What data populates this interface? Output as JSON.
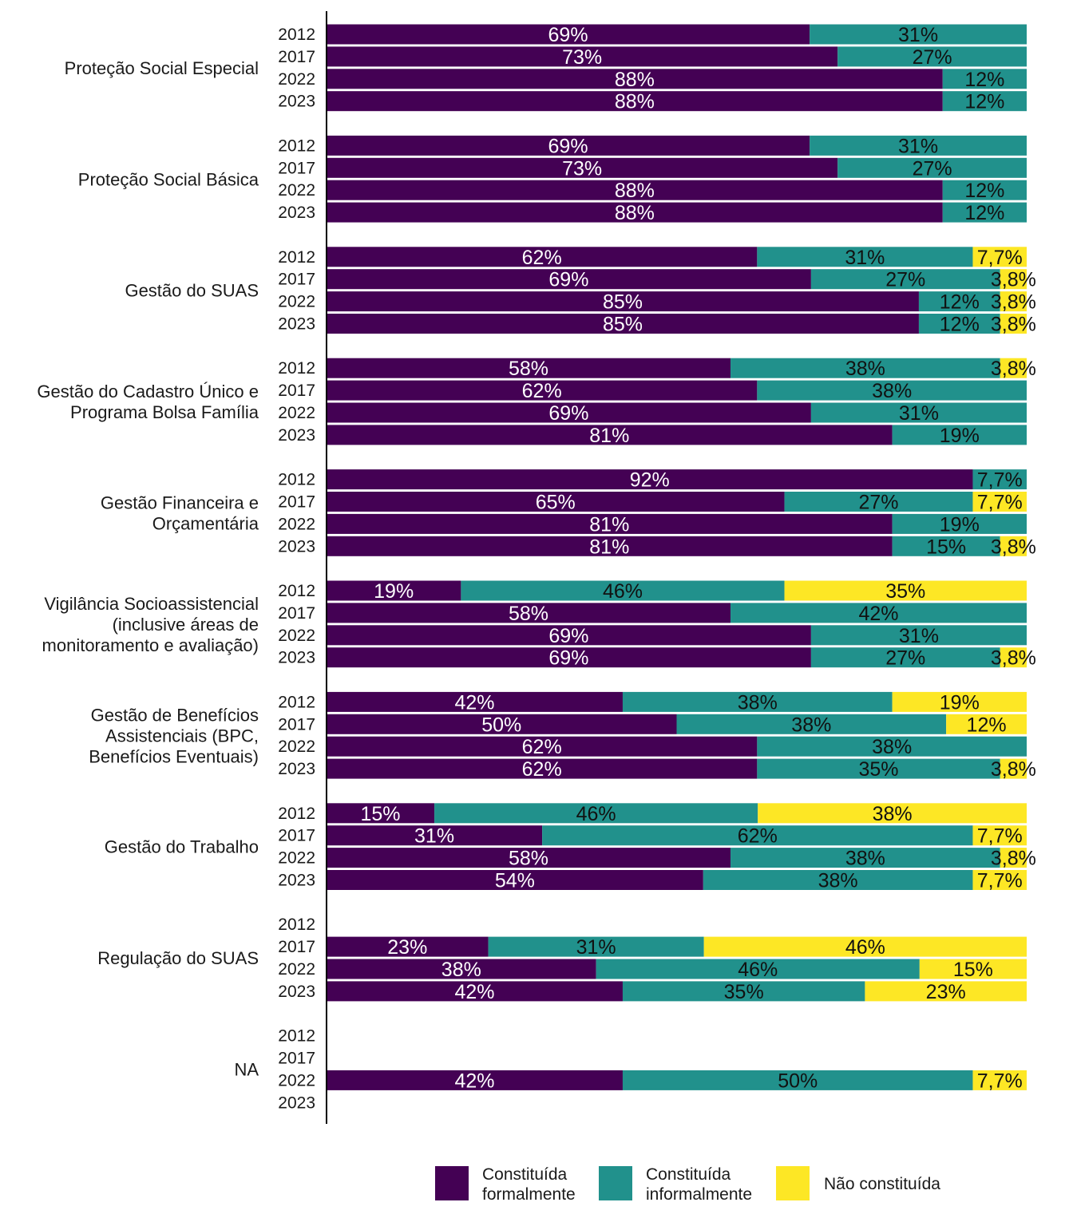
{
  "chart_data": {
    "type": "bar",
    "orientation": "horizontal",
    "stacked": true,
    "normalized": true,
    "xlim": [
      0,
      1
    ],
    "grid": false,
    "legend_position": "bottom",
    "years": [
      "2012",
      "2017",
      "2022",
      "2023"
    ],
    "series": [
      {
        "key": "formal",
        "name": "Constituída formalmente",
        "color": "#440154"
      },
      {
        "key": "informal",
        "name": "Constituída informalmente",
        "color": "#21918c"
      },
      {
        "key": "nao",
        "name": "Não constituída",
        "color": "#fde725"
      }
    ],
    "groups": [
      {
        "label_lines": [
          "Proteção Social Especial"
        ],
        "rows": [
          {
            "year": "2012",
            "values": [
              0.69,
              0.31,
              0
            ],
            "labels": [
              "69%",
              "31%",
              ""
            ]
          },
          {
            "year": "2017",
            "values": [
              0.73,
              0.27,
              0
            ],
            "labels": [
              "73%",
              "27%",
              ""
            ]
          },
          {
            "year": "2022",
            "values": [
              0.88,
              0.12,
              0
            ],
            "labels": [
              "88%",
              "12%",
              ""
            ]
          },
          {
            "year": "2023",
            "values": [
              0.88,
              0.12,
              0
            ],
            "labels": [
              "88%",
              "12%",
              ""
            ]
          }
        ]
      },
      {
        "label_lines": [
          "Proteção Social Básica"
        ],
        "rows": [
          {
            "year": "2012",
            "values": [
              0.69,
              0.31,
              0
            ],
            "labels": [
              "69%",
              "31%",
              ""
            ]
          },
          {
            "year": "2017",
            "values": [
              0.73,
              0.27,
              0
            ],
            "labels": [
              "73%",
              "27%",
              ""
            ]
          },
          {
            "year": "2022",
            "values": [
              0.88,
              0.12,
              0
            ],
            "labels": [
              "88%",
              "12%",
              ""
            ]
          },
          {
            "year": "2023",
            "values": [
              0.88,
              0.12,
              0
            ],
            "labels": [
              "88%",
              "12%",
              ""
            ]
          }
        ]
      },
      {
        "label_lines": [
          "Gestão do SUAS"
        ],
        "rows": [
          {
            "year": "2012",
            "values": [
              0.615,
              0.308,
              0.077
            ],
            "labels": [
              "62%",
              "31%",
              "7,7%"
            ]
          },
          {
            "year": "2017",
            "values": [
              0.692,
              0.27,
              0.038
            ],
            "labels": [
              "69%",
              "27%",
              "3,8%"
            ]
          },
          {
            "year": "2022",
            "values": [
              0.846,
              0.116,
              0.038
            ],
            "labels": [
              "85%",
              "12%",
              "3,8%"
            ]
          },
          {
            "year": "2023",
            "values": [
              0.846,
              0.116,
              0.038
            ],
            "labels": [
              "85%",
              "12%",
              "3,8%"
            ]
          }
        ]
      },
      {
        "label_lines": [
          "Gestão do Cadastro Único e",
          "Programa Bolsa Família"
        ],
        "rows": [
          {
            "year": "2012",
            "values": [
              0.577,
              0.385,
              0.038
            ],
            "labels": [
              "58%",
              "38%",
              "3,8%"
            ]
          },
          {
            "year": "2017",
            "values": [
              0.615,
              0.385,
              0
            ],
            "labels": [
              "62%",
              "38%",
              ""
            ]
          },
          {
            "year": "2022",
            "values": [
              0.692,
              0.308,
              0
            ],
            "labels": [
              "69%",
              "31%",
              ""
            ]
          },
          {
            "year": "2023",
            "values": [
              0.808,
              0.192,
              0
            ],
            "labels": [
              "81%",
              "19%",
              ""
            ]
          }
        ]
      },
      {
        "label_lines": [
          "Gestão Financeira e",
          "Orçamentária"
        ],
        "rows": [
          {
            "year": "2012",
            "values": [
              0.923,
              0.077,
              0
            ],
            "labels": [
              "92%",
              "7,7%",
              ""
            ]
          },
          {
            "year": "2017",
            "values": [
              0.654,
              0.269,
              0.077
            ],
            "labels": [
              "65%",
              "27%",
              "7,7%"
            ]
          },
          {
            "year": "2022",
            "values": [
              0.808,
              0.192,
              0
            ],
            "labels": [
              "81%",
              "19%",
              ""
            ]
          },
          {
            "year": "2023",
            "values": [
              0.808,
              0.154,
              0.038
            ],
            "labels": [
              "81%",
              "15%",
              "3,8%"
            ]
          }
        ]
      },
      {
        "label_lines": [
          "Vigilância Socioassistencial",
          "(inclusive áreas de",
          "monitoramento e avaliação)"
        ],
        "rows": [
          {
            "year": "2012",
            "values": [
              0.192,
              0.462,
              0.346
            ],
            "labels": [
              "19%",
              "46%",
              "35%"
            ]
          },
          {
            "year": "2017",
            "values": [
              0.577,
              0.423,
              0
            ],
            "labels": [
              "58%",
              "42%",
              ""
            ]
          },
          {
            "year": "2022",
            "values": [
              0.692,
              0.308,
              0
            ],
            "labels": [
              "69%",
              "31%",
              ""
            ]
          },
          {
            "year": "2023",
            "values": [
              0.692,
              0.27,
              0.038
            ],
            "labels": [
              "69%",
              "27%",
              "3,8%"
            ]
          }
        ]
      },
      {
        "label_lines": [
          "Gestão de Benefícios",
          "Assistenciais (BPC,",
          "Benefícios Eventuais)"
        ],
        "rows": [
          {
            "year": "2012",
            "values": [
              0.423,
              0.385,
              0.192
            ],
            "labels": [
              "42%",
              "38%",
              "19%"
            ]
          },
          {
            "year": "2017",
            "values": [
              0.5,
              0.385,
              0.115
            ],
            "labels": [
              "50%",
              "38%",
              "12%"
            ]
          },
          {
            "year": "2022",
            "values": [
              0.615,
              0.385,
              0
            ],
            "labels": [
              "62%",
              "38%",
              ""
            ]
          },
          {
            "year": "2023",
            "values": [
              0.615,
              0.347,
              0.038
            ],
            "labels": [
              "62%",
              "35%",
              "3,8%"
            ]
          }
        ]
      },
      {
        "label_lines": [
          "Gestão do Trabalho"
        ],
        "rows": [
          {
            "year": "2012",
            "values": [
              0.154,
              0.462,
              0.384
            ],
            "labels": [
              "15%",
              "46%",
              "38%"
            ]
          },
          {
            "year": "2017",
            "values": [
              0.308,
              0.615,
              0.077
            ],
            "labels": [
              "31%",
              "62%",
              "7,7%"
            ]
          },
          {
            "year": "2022",
            "values": [
              0.577,
              0.385,
              0.038
            ],
            "labels": [
              "58%",
              "38%",
              "3,8%"
            ]
          },
          {
            "year": "2023",
            "values": [
              0.538,
              0.385,
              0.077
            ],
            "labels": [
              "54%",
              "38%",
              "7,7%"
            ]
          }
        ]
      },
      {
        "label_lines": [
          "Regulação do SUAS"
        ],
        "rows": [
          {
            "year": "2012",
            "values": [
              0,
              0,
              0
            ],
            "labels": [
              "",
              "",
              ""
            ]
          },
          {
            "year": "2017",
            "values": [
              0.231,
              0.308,
              0.461
            ],
            "labels": [
              "23%",
              "31%",
              "46%"
            ]
          },
          {
            "year": "2022",
            "values": [
              0.385,
              0.462,
              0.153
            ],
            "labels": [
              "38%",
              "46%",
              "15%"
            ]
          },
          {
            "year": "2023",
            "values": [
              0.423,
              0.346,
              0.231
            ],
            "labels": [
              "42%",
              "35%",
              "23%"
            ]
          }
        ]
      },
      {
        "label_lines": [
          "NA"
        ],
        "rows": [
          {
            "year": "2012",
            "values": [
              0,
              0,
              0
            ],
            "labels": [
              "",
              "",
              ""
            ]
          },
          {
            "year": "2017",
            "values": [
              0,
              0,
              0
            ],
            "labels": [
              "",
              "",
              ""
            ]
          },
          {
            "year": "2022",
            "values": [
              0.423,
              0.5,
              0.077
            ],
            "labels": [
              "42%",
              "50%",
              "7,7%"
            ]
          },
          {
            "year": "2023",
            "values": [
              0,
              0,
              0
            ],
            "labels": [
              "",
              "",
              ""
            ]
          }
        ]
      }
    ]
  }
}
